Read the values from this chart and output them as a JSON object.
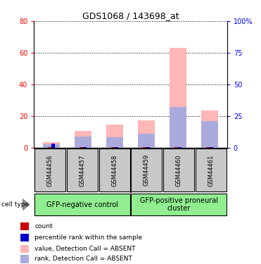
{
  "title": "GDS1068 / 143698_at",
  "samples": [
    "GSM44456",
    "GSM44457",
    "GSM44458",
    "GSM44459",
    "GSM44460",
    "GSM44461"
  ],
  "group1_label": "GFP-negative control",
  "group2_label": "GFP-positive proneural\ncluster",
  "group1_count": 3,
  "group2_count": 3,
  "value_absent": [
    3.5,
    10.5,
    14.5,
    17.5,
    63.0,
    23.5
  ],
  "rank_absent_pct": [
    3.0,
    9.0,
    8.5,
    11.0,
    32.0,
    21.0
  ],
  "count_red": [
    0.4,
    0.4,
    0.4,
    0.4,
    0.4,
    0.4
  ],
  "count_blue": [
    2.5,
    0.4,
    0.4,
    0.4,
    0.4,
    0.4
  ],
  "ylim_left": [
    0,
    80
  ],
  "ylim_right": [
    0,
    100
  ],
  "yticks_left": [
    0,
    20,
    40,
    60,
    80
  ],
  "yticks_right": [
    0,
    25,
    50,
    75,
    100
  ],
  "ytick_labels_left": [
    "0",
    "20",
    "40",
    "60",
    "80"
  ],
  "ytick_labels_right": [
    "0",
    "25",
    "50",
    "75",
    "100%"
  ],
  "color_value_absent": "#FFB6B6",
  "color_rank_absent": "#AAAADD",
  "color_count_red": "#CC0000",
  "color_count_blue": "#0000CC",
  "color_group_bg": "#90EE90",
  "color_sample_bg": "#C8C8C8",
  "legend_items": [
    [
      "count",
      "#CC0000"
    ],
    [
      "percentile rank within the sample",
      "#0000CC"
    ],
    [
      "value, Detection Call = ABSENT",
      "#FFB6B6"
    ],
    [
      "rank, Detection Call = ABSENT",
      "#AAAADD"
    ]
  ]
}
